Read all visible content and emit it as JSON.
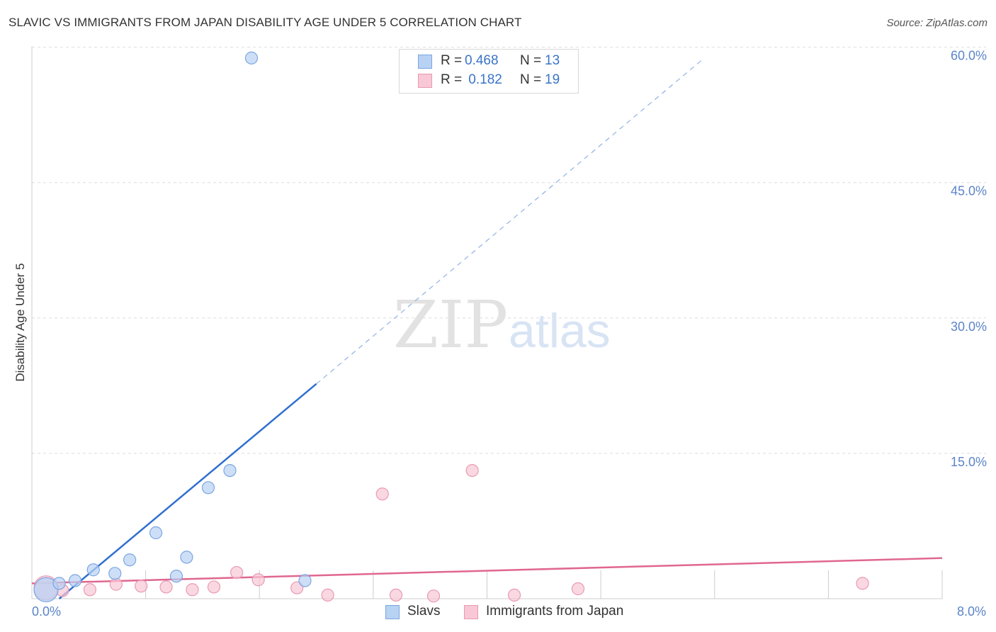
{
  "title": "SLAVIC VS IMMIGRANTS FROM JAPAN DISABILITY AGE UNDER 5 CORRELATION CHART",
  "source": "Source: ZipAtlas.com",
  "watermark": {
    "zip": "ZIP",
    "atlas": "atlas"
  },
  "legend": {
    "rows": [
      {
        "r_label": "R =",
        "r_value": "0.468",
        "n_label": "N =",
        "n_value": "13"
      },
      {
        "r_label": "R =",
        "r_value": " 0.182",
        "n_label": "N =",
        "n_value": "19"
      }
    ]
  },
  "colors": {
    "slavs_fill": "#b8d2f4",
    "slavs_stroke": "#7aa6e0",
    "slavs_line": "#2f6fd0",
    "japan_fill": "#f8c8d6",
    "japan_stroke": "#e99ab2",
    "japan_line": "#e0678f",
    "tick_text": "#5b84c8",
    "grid": "#dddddd"
  },
  "chart_data": {
    "type": "scatter",
    "title": "SLAVIC VS IMMIGRANTS FROM JAPAN DISABILITY AGE UNDER 5 CORRELATION CHART",
    "xlabel": "",
    "ylabel": "Disability Age Under 5",
    "xlim": [
      0,
      8.0
    ],
    "ylim": [
      0,
      62
    ],
    "x_tick_labels": [
      "0.0%",
      "8.0%"
    ],
    "y_ticks": [
      15,
      30,
      45,
      60
    ],
    "y_tick_labels": [
      "15.0%",
      "30.0%",
      "45.0%",
      "60.0%"
    ],
    "grid": true,
    "series": [
      {
        "name": "Slavs",
        "r": 0.468,
        "n": 13,
        "points": [
          [
            0.05,
            1.0
          ],
          [
            0.24,
            1.7
          ],
          [
            0.38,
            2.0
          ],
          [
            0.54,
            3.2
          ],
          [
            0.73,
            2.8
          ],
          [
            0.86,
            4.3
          ],
          [
            1.09,
            7.3
          ],
          [
            1.27,
            2.5
          ],
          [
            1.36,
            4.6
          ],
          [
            1.55,
            12.3
          ],
          [
            1.74,
            14.2
          ],
          [
            1.93,
            59.9
          ],
          [
            2.4,
            2.0
          ]
        ],
        "trend": {
          "x_start": 0.24,
          "y_start": 0.0,
          "x_solid_end": 2.5,
          "y_solid_end": 23.8,
          "x_dash_end": 5.9,
          "y_dash_end": 59.8
        }
      },
      {
        "name": "Immigrants from Japan",
        "r": 0.182,
        "n": 19,
        "points": [
          [
            0.05,
            1.2
          ],
          [
            0.27,
            0.9
          ],
          [
            0.51,
            1.0
          ],
          [
            0.74,
            1.6
          ],
          [
            0.96,
            1.4
          ],
          [
            1.18,
            1.3
          ],
          [
            1.41,
            1.0
          ],
          [
            1.6,
            1.3
          ],
          [
            1.8,
            2.9
          ],
          [
            1.99,
            2.1
          ],
          [
            2.33,
            1.2
          ],
          [
            2.6,
            0.4
          ],
          [
            3.08,
            11.6
          ],
          [
            3.2,
            0.4
          ],
          [
            3.53,
            0.3
          ],
          [
            3.87,
            14.2
          ],
          [
            4.24,
            0.4
          ],
          [
            4.8,
            1.1
          ],
          [
            7.3,
            1.7
          ]
        ],
        "trend": {
          "x_start": 0.0,
          "y_start": 1.7,
          "x_end": 8.0,
          "y_end": 4.5
        }
      }
    ]
  }
}
